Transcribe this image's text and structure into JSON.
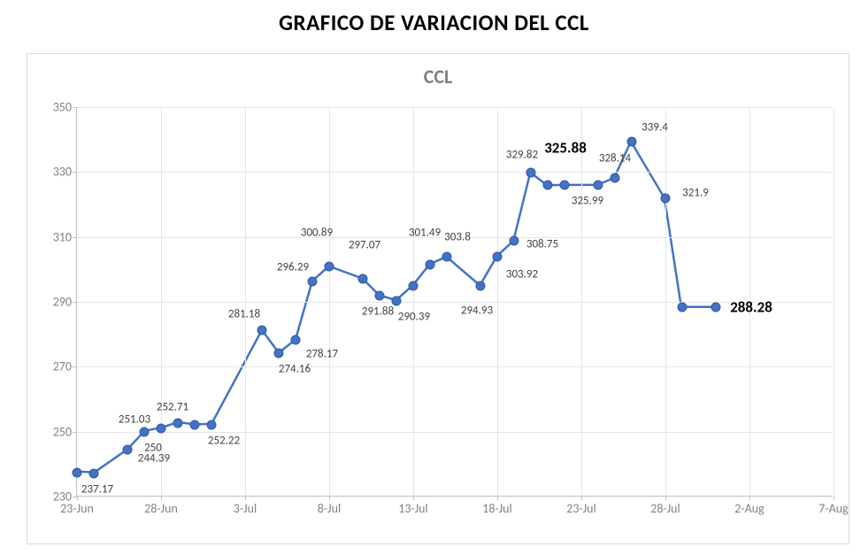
{
  "page_title": "GRAFICO DE VARIACION DEL CCL",
  "chart": {
    "type": "line",
    "title": "CCL",
    "title_color": "#808080",
    "title_fontsize": 22,
    "background_color": "#ffffff",
    "border_color": "#d9d9d9",
    "grid_color": "#e6e6e6",
    "axis_color": "#c0c0c0",
    "tick_label_color": "#808080",
    "tick_label_fontsize": 14,
    "line_color": "#4472c4",
    "line_width": 2.5,
    "marker_fill": "#4472c4",
    "marker_border": "#2e5aa0",
    "marker_border_width": 1,
    "marker_size": 9,
    "data_label_color": "#404040",
    "data_label_fontsize": 13,
    "bold_label_color": "#000000",
    "bold_label_fontsize": 17,
    "y_axis": {
      "min": 230,
      "max": 350,
      "step": 20,
      "ticks": [
        230,
        250,
        270,
        290,
        310,
        330,
        350
      ]
    },
    "x_axis": {
      "min": 0,
      "max": 45,
      "ticks": [
        {
          "pos": 0,
          "label": "23-Jun"
        },
        {
          "pos": 5,
          "label": "28-Jun"
        },
        {
          "pos": 10,
          "label": "3-Jul"
        },
        {
          "pos": 15,
          "label": "8-Jul"
        },
        {
          "pos": 20,
          "label": "13-Jul"
        },
        {
          "pos": 25,
          "label": "18-Jul"
        },
        {
          "pos": 30,
          "label": "23-Jul"
        },
        {
          "pos": 35,
          "label": "28-Jul"
        },
        {
          "pos": 40,
          "label": "2-Aug"
        },
        {
          "pos": 45,
          "label": "7-Aug"
        }
      ]
    },
    "series": [
      {
        "x": 0,
        "y": 237.5,
        "label": "",
        "bold": false,
        "label_dx": 0,
        "label_dy": 0,
        "show_label": false
      },
      {
        "x": 1,
        "y": 237.17,
        "label": "237.17",
        "bold": false,
        "label_dx": 4,
        "label_dy": 18,
        "show_label": true
      },
      {
        "x": 3,
        "y": 244.39,
        "label": "244.39",
        "bold": false,
        "label_dx": 30,
        "label_dy": 10,
        "show_label": true
      },
      {
        "x": 4,
        "y": 250.0,
        "label": "250",
        "bold": false,
        "label_dx": 10,
        "label_dy": 18,
        "show_label": true
      },
      {
        "x": 5,
        "y": 251.03,
        "label": "251.03",
        "bold": false,
        "label_dx": -30,
        "label_dy": -10,
        "show_label": true
      },
      {
        "x": 6,
        "y": 252.71,
        "label": "252.71",
        "bold": false,
        "label_dx": -6,
        "label_dy": -18,
        "show_label": true
      },
      {
        "x": 7,
        "y": 252.0,
        "label": "",
        "bold": false,
        "label_dx": 0,
        "label_dy": 0,
        "show_label": false
      },
      {
        "x": 8,
        "y": 252.22,
        "label": "252.22",
        "bold": false,
        "label_dx": 14,
        "label_dy": 18,
        "show_label": true
      },
      {
        "x": 11,
        "y": 281.18,
        "label": "281.18",
        "bold": false,
        "label_dx": -20,
        "label_dy": -18,
        "show_label": true
      },
      {
        "x": 12,
        "y": 274.16,
        "label": "274.16",
        "bold": false,
        "label_dx": 18,
        "label_dy": 18,
        "show_label": true
      },
      {
        "x": 13,
        "y": 278.17,
        "label": "278.17",
        "bold": false,
        "label_dx": 30,
        "label_dy": 16,
        "show_label": true
      },
      {
        "x": 14,
        "y": 296.29,
        "label": "296.29",
        "bold": false,
        "label_dx": -22,
        "label_dy": -16,
        "show_label": true
      },
      {
        "x": 15,
        "y": 300.89,
        "label": "300.89",
        "bold": false,
        "label_dx": -14,
        "label_dy": -38,
        "show_label": true
      },
      {
        "x": 17,
        "y": 297.07,
        "label": "297.07",
        "bold": false,
        "label_dx": 2,
        "label_dy": -38,
        "show_label": true
      },
      {
        "x": 18,
        "y": 291.88,
        "label": "291.88",
        "bold": false,
        "label_dx": -2,
        "label_dy": 18,
        "show_label": true
      },
      {
        "x": 19,
        "y": 290.39,
        "label": "290.39",
        "bold": false,
        "label_dx": 20,
        "label_dy": 18,
        "show_label": true
      },
      {
        "x": 20,
        "y": 295.0,
        "label": "",
        "bold": false,
        "label_dx": 0,
        "label_dy": 0,
        "show_label": false
      },
      {
        "x": 21,
        "y": 301.49,
        "label": "301.49",
        "bold": false,
        "label_dx": -6,
        "label_dy": -36,
        "show_label": true
      },
      {
        "x": 22,
        "y": 303.8,
        "label": "303.8",
        "bold": false,
        "label_dx": 12,
        "label_dy": -22,
        "show_label": true
      },
      {
        "x": 24,
        "y": 294.93,
        "label": "294.93",
        "bold": false,
        "label_dx": -4,
        "label_dy": 28,
        "show_label": true
      },
      {
        "x": 25,
        "y": 303.92,
        "label": "303.92",
        "bold": false,
        "label_dx": 28,
        "label_dy": 20,
        "show_label": true
      },
      {
        "x": 26,
        "y": 308.75,
        "label": "308.75",
        "bold": false,
        "label_dx": 32,
        "label_dy": 4,
        "show_label": true
      },
      {
        "x": 27,
        "y": 329.82,
        "label": "329.82",
        "bold": false,
        "label_dx": -10,
        "label_dy": -20,
        "show_label": true
      },
      {
        "x": 28,
        "y": 325.88,
        "label": "325.88",
        "bold": true,
        "label_dx": 20,
        "label_dy": -42,
        "show_label": true
      },
      {
        "x": 29,
        "y": 325.99,
        "label": "325.99",
        "bold": false,
        "label_dx": 26,
        "label_dy": 18,
        "show_label": true
      },
      {
        "x": 31,
        "y": 325.99,
        "label": "",
        "bold": false,
        "label_dx": 0,
        "label_dy": 0,
        "show_label": false
      },
      {
        "x": 32,
        "y": 328.14,
        "label": "328.14",
        "bold": false,
        "label_dx": 0,
        "label_dy": -22,
        "show_label": true
      },
      {
        "x": 33,
        "y": 339.4,
        "label": "339.4",
        "bold": false,
        "label_dx": 26,
        "label_dy": -16,
        "show_label": true
      },
      {
        "x": 35,
        "y": 321.9,
        "label": "321.9",
        "bold": false,
        "label_dx": 34,
        "label_dy": -6,
        "show_label": true
      },
      {
        "x": 36,
        "y": 288.28,
        "label": "",
        "bold": false,
        "label_dx": 0,
        "label_dy": 0,
        "show_label": false
      },
      {
        "x": 38,
        "y": 288.28,
        "label": "288.28",
        "bold": true,
        "label_dx": 40,
        "label_dy": 0,
        "show_label": true
      }
    ]
  }
}
